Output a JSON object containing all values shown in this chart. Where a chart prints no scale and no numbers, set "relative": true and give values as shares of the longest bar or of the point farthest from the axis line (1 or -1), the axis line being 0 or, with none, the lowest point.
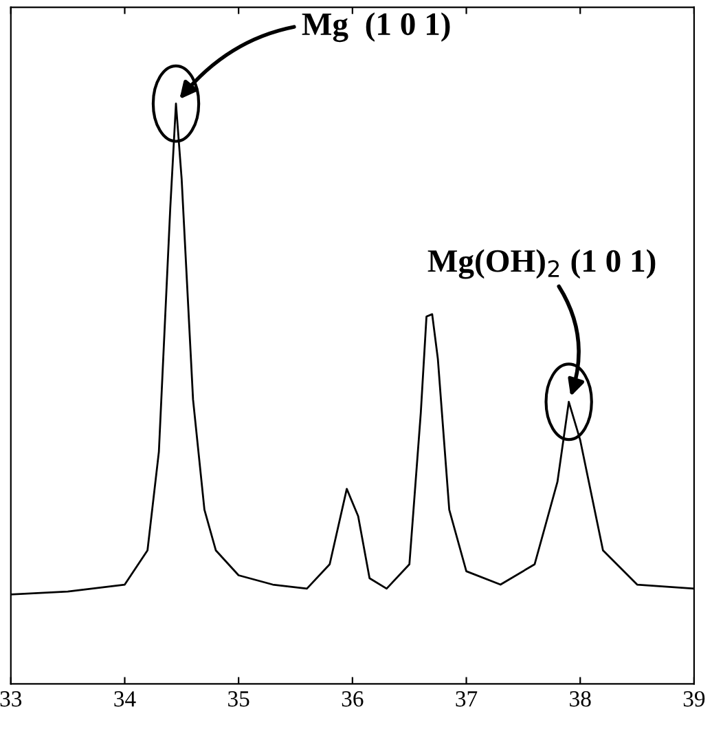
{
  "chart_data": {
    "type": "line",
    "relative": true,
    "color": "#000000",
    "x": [
      33,
      33.5,
      34.0,
      34.2,
      34.3,
      34.4,
      34.45,
      34.5,
      34.6,
      34.7,
      34.8,
      35.0,
      35.3,
      35.6,
      35.8,
      35.95,
      36.05,
      36.15,
      36.3,
      36.5,
      36.6,
      36.65,
      36.7,
      36.75,
      36.85,
      37.0,
      37.3,
      37.6,
      37.8,
      37.9,
      38.0,
      38.2,
      38.5,
      39.0
    ],
    "values": [
      0.154,
      0.159,
      0.171,
      0.23,
      0.4,
      0.82,
      1.0,
      0.87,
      0.49,
      0.3,
      0.23,
      0.187,
      0.171,
      0.164,
      0.206,
      0.336,
      0.289,
      0.182,
      0.164,
      0.206,
      0.467,
      0.633,
      0.637,
      0.56,
      0.3,
      0.194,
      0.171,
      0.206,
      0.348,
      0.486,
      0.42,
      0.23,
      0.171,
      0.164
    ],
    "xlim": [
      33,
      39
    ],
    "xticks": [
      33,
      34,
      35,
      36,
      37,
      38,
      39
    ],
    "annotations": [
      {
        "text": "Mg  (1 0 1)",
        "x": 34.45,
        "y": 1.0
      },
      {
        "text": "Mg(OH)$_{2}$ (1 0 1)",
        "x": 37.9,
        "y": 0.486
      }
    ]
  }
}
